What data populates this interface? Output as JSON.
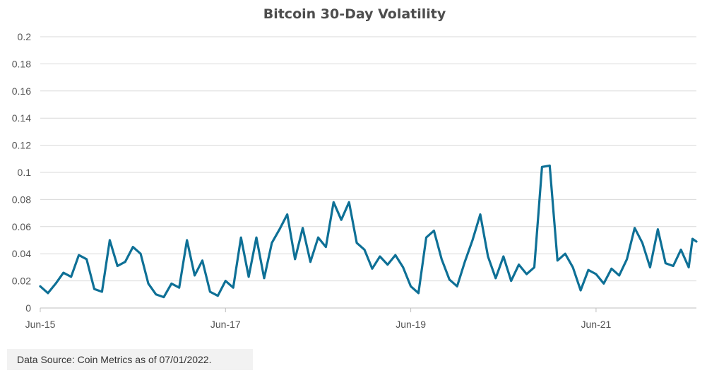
{
  "chart_data": {
    "type": "line",
    "title": "Bitcoin 30-Day Volatility",
    "xlabel": "",
    "ylabel": "",
    "ylim": [
      0,
      0.2
    ],
    "yticks": [
      "0",
      "0.02",
      "0.04",
      "0.06",
      "0.08",
      "0.1",
      "0.12",
      "0.14",
      "0.16",
      "0.18",
      "0.2"
    ],
    "xlim": [
      "2015-06",
      "2022-07"
    ],
    "xticks": [
      {
        "label": "Jun-15",
        "date": "2015-06"
      },
      {
        "label": "Jun-17",
        "date": "2017-06"
      },
      {
        "label": "Jun-19",
        "date": "2019-06"
      },
      {
        "label": "Jun-21",
        "date": "2021-06"
      }
    ],
    "grid": true,
    "legend": "none",
    "series": [
      {
        "color": "#0e7096",
        "points": [
          [
            "2015-06",
            0.016
          ],
          [
            "2015-07",
            0.011
          ],
          [
            "2015-08",
            0.018
          ],
          [
            "2015-09",
            0.026
          ],
          [
            "2015-10",
            0.023
          ],
          [
            "2015-11",
            0.039
          ],
          [
            "2015-12",
            0.036
          ],
          [
            "2016-01",
            0.014
          ],
          [
            "2016-02",
            0.012
          ],
          [
            "2016-03",
            0.05
          ],
          [
            "2016-04",
            0.031
          ],
          [
            "2016-05",
            0.034
          ],
          [
            "2016-06",
            0.045
          ],
          [
            "2016-07",
            0.04
          ],
          [
            "2016-08",
            0.018
          ],
          [
            "2016-09",
            0.01
          ],
          [
            "2016-10",
            0.008
          ],
          [
            "2016-11",
            0.018
          ],
          [
            "2016-12",
            0.015
          ],
          [
            "2017-01",
            0.05
          ],
          [
            "2017-02",
            0.024
          ],
          [
            "2017-03",
            0.035
          ],
          [
            "2017-04",
            0.012
          ],
          [
            "2017-05",
            0.009
          ],
          [
            "2017-06",
            0.02
          ],
          [
            "2017-07",
            0.015
          ],
          [
            "2017-08",
            0.052
          ],
          [
            "2017-09",
            0.023
          ],
          [
            "2017-10",
            0.052
          ],
          [
            "2017-11",
            0.022
          ],
          [
            "2017-12",
            0.048
          ],
          [
            "2018-01",
            0.058
          ],
          [
            "2018-02",
            0.069
          ],
          [
            "2018-03",
            0.036
          ],
          [
            "2018-04",
            0.059
          ],
          [
            "2018-05",
            0.034
          ],
          [
            "2018-06",
            0.052
          ],
          [
            "2018-07",
            0.045
          ],
          [
            "2018-08",
            0.078
          ],
          [
            "2018-09",
            0.065
          ],
          [
            "2018-10",
            0.078
          ],
          [
            "2018-11",
            0.048
          ],
          [
            "2018-12",
            0.043
          ],
          [
            "2019-01",
            0.029
          ],
          [
            "2019-02",
            0.038
          ],
          [
            "2019-03",
            0.032
          ],
          [
            "2019-04",
            0.039
          ],
          [
            "2019-05",
            0.03
          ],
          [
            "2019-06",
            0.016
          ],
          [
            "2019-07",
            0.011
          ],
          [
            "2019-08",
            0.052
          ],
          [
            "2019-09",
            0.057
          ],
          [
            "2019-10",
            0.036
          ],
          [
            "2019-11",
            0.021
          ],
          [
            "2019-12",
            0.016
          ],
          [
            "2020-01",
            0.034
          ],
          [
            "2020-02",
            0.05
          ],
          [
            "2020-03",
            0.069
          ],
          [
            "2020-04",
            0.038
          ],
          [
            "2020-05",
            0.022
          ],
          [
            "2020-06",
            0.038
          ],
          [
            "2020-07",
            0.02
          ],
          [
            "2020-08",
            0.032
          ],
          [
            "2020-09",
            0.025
          ],
          [
            "2020-10",
            0.03
          ],
          [
            "2020-11",
            0.104
          ],
          [
            "2020-12",
            0.105
          ],
          [
            "2021-01",
            0.035
          ],
          [
            "2021-02",
            0.04
          ],
          [
            "2021-03",
            0.03
          ],
          [
            "2021-04",
            0.013
          ],
          [
            "2021-05",
            0.028
          ],
          [
            "2021-06",
            0.025
          ],
          [
            "2021-07",
            0.018
          ],
          [
            "2021-08",
            0.029
          ],
          [
            "2021-09",
            0.024
          ],
          [
            "2021-10",
            0.036
          ],
          [
            "2021-11",
            0.059
          ],
          [
            "2021-12",
            0.048
          ],
          [
            "2022-01",
            0.03
          ],
          [
            "2022-02",
            0.058
          ],
          [
            "2022-03",
            0.033
          ],
          [
            "2022-04",
            0.031
          ],
          [
            "2022-05",
            0.043
          ],
          [
            "2022-06",
            0.03
          ],
          [
            "2022-06",
            0.051
          ],
          [
            "2022-07",
            0.049
          ]
        ]
      }
    ]
  },
  "footer": {
    "source": "Data Source: Coin Metrics as of 07/01/2022."
  }
}
